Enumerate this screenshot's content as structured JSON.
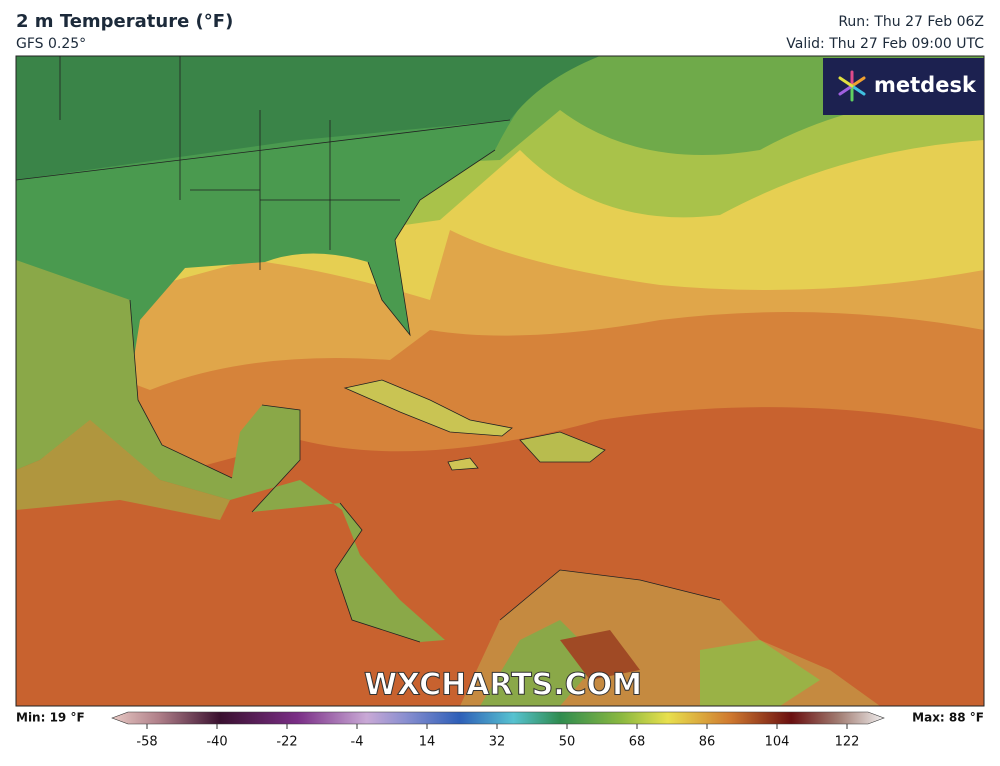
{
  "header": {
    "title": "2 m Temperature (°F)",
    "model": "GFS 0.25°",
    "run": "Run: Thu 27 Feb 06Z",
    "valid": "Valid: Thu 27 Feb 09:00 UTC"
  },
  "logo": "metdesk",
  "watermark": "WXCHARTS.COM",
  "legend": {
    "min_label": "Min: 19 °F",
    "max_label": "Max: 88 °F",
    "ticks": [
      -58,
      -40,
      -22,
      -4,
      14,
      32,
      50,
      68,
      86,
      104,
      122
    ]
  }
}
